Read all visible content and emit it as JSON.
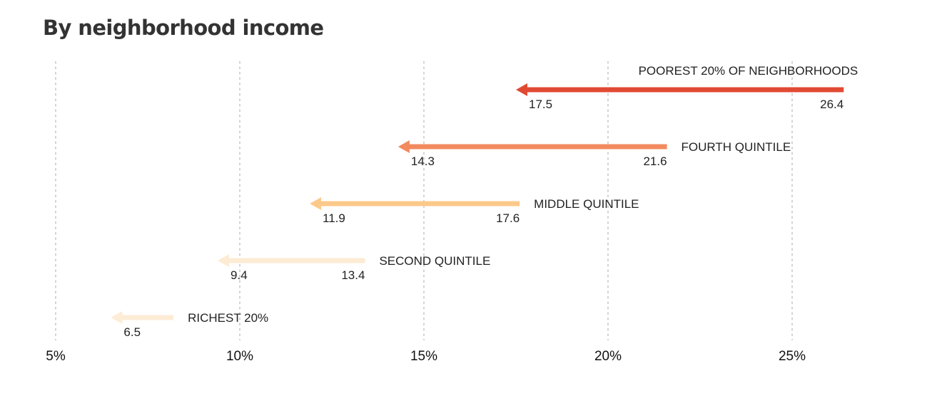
{
  "title": "By neighborhood income",
  "chart_data": {
    "type": "arrow",
    "title": "By neighborhood income",
    "x_ticks": [
      5,
      10,
      15,
      20,
      25
    ],
    "x_tick_labels": [
      "5%",
      "10%",
      "15%",
      "20%",
      "25%"
    ],
    "xlim": [
      5,
      25
    ],
    "grid": "vertical dashed",
    "series": [
      {
        "name": "POOREST 20% OF NEIGHBORHOODS",
        "from": 26.4,
        "to": 17.5,
        "from_label": "26.4",
        "to_label": "17.5",
        "color": "#e04a33"
      },
      {
        "name": "FOURTH QUINTILE",
        "from": 21.6,
        "to": 14.3,
        "from_label": "21.6",
        "to_label": "14.3",
        "color": "#f28a5e"
      },
      {
        "name": "MIDDLE QUINTILE",
        "from": 17.6,
        "to": 11.9,
        "from_label": "17.6",
        "to_label": "11.9",
        "color": "#fdc98a"
      },
      {
        "name": "SECOND QUINTILE",
        "from": 13.4,
        "to": 9.4,
        "from_label": "13.4",
        "to_label": "9.4",
        "color": "#fdebd3"
      },
      {
        "name": "RICHEST 20%",
        "from": 8.2,
        "to": 6.5,
        "from_label": "",
        "to_label": "6.5",
        "color": "#fdecd6"
      }
    ]
  }
}
